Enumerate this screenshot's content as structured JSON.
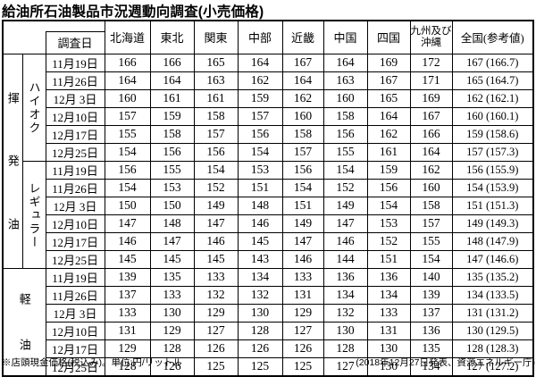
{
  "title": "給油所石油製品市況週動向調査(小売価格)",
  "table": {
    "corner_label": "調査日",
    "region_headers": [
      "北海道",
      "東北",
      "関東",
      "中部",
      "近畿",
      "中国",
      "四国",
      "九州及び沖縄",
      "全国(参考値)"
    ],
    "groups": [
      {
        "category": "揮発油",
        "fuel": "ハイオク",
        "rows": [
          {
            "date": "11月19日",
            "values": [
              "166",
              "166",
              "165",
              "164",
              "167",
              "164",
              "169",
              "172",
              "167 (166.7)"
            ]
          },
          {
            "date": "11月26日",
            "values": [
              "164",
              "164",
              "163",
              "162",
              "164",
              "163",
              "167",
              "171",
              "165 (164.7)"
            ]
          },
          {
            "date": "12月 3日",
            "values": [
              "160",
              "161",
              "161",
              "159",
              "162",
              "160",
              "165",
              "169",
              "162 (162.1)"
            ]
          },
          {
            "date": "12月10日",
            "values": [
              "157",
              "159",
              "158",
              "157",
              "160",
              "158",
              "164",
              "167",
              "160 (160.1)"
            ]
          },
          {
            "date": "12月17日",
            "values": [
              "155",
              "158",
              "157",
              "156",
              "158",
              "156",
              "162",
              "166",
              "159 (158.6)"
            ]
          },
          {
            "date": "12月25日",
            "values": [
              "154",
              "156",
              "156",
              "154",
              "157",
              "155",
              "161",
              "164",
              "157 (157.3)"
            ]
          }
        ]
      },
      {
        "fuel": "レギュラー",
        "rows": [
          {
            "date": "11月19日",
            "values": [
              "156",
              "155",
              "154",
              "153",
              "156",
              "154",
              "159",
              "162",
              "156 (155.9)"
            ]
          },
          {
            "date": "11月26日",
            "values": [
              "154",
              "153",
              "152",
              "151",
              "154",
              "152",
              "156",
              "160",
              "154 (153.9)"
            ]
          },
          {
            "date": "12月 3日",
            "values": [
              "150",
              "150",
              "149",
              "148",
              "151",
              "149",
              "154",
              "158",
              "151 (151.3)"
            ]
          },
          {
            "date": "12月10日",
            "values": [
              "147",
              "148",
              "147",
              "146",
              "149",
              "147",
              "153",
              "157",
              "149 (149.3)"
            ]
          },
          {
            "date": "12月17日",
            "values": [
              "146",
              "147",
              "146",
              "145",
              "147",
              "146",
              "152",
              "155",
              "148 (147.9)"
            ]
          },
          {
            "date": "12月25日",
            "values": [
              "145",
              "145",
              "145",
              "143",
              "146",
              "144",
              "151",
              "154",
              "147 (146.6)"
            ]
          }
        ]
      },
      {
        "category": "軽油",
        "rows": [
          {
            "date": "11月19日",
            "values": [
              "139",
              "135",
              "133",
              "134",
              "133",
              "136",
              "136",
              "140",
              "135 (135.2)"
            ]
          },
          {
            "date": "11月26日",
            "values": [
              "137",
              "133",
              "132",
              "132",
              "131",
              "134",
              "134",
              "139",
              "134 (133.5)"
            ]
          },
          {
            "date": "12月 3日",
            "values": [
              "133",
              "130",
              "129",
              "130",
              "129",
              "132",
              "133",
              "137",
              "131 (131.2)"
            ]
          },
          {
            "date": "12月10日",
            "values": [
              "131",
              "129",
              "127",
              "128",
              "127",
              "130",
              "131",
              "136",
              "130 (129.5)"
            ]
          },
          {
            "date": "12月17日",
            "values": [
              "129",
              "128",
              "126",
              "126",
              "126",
              "128",
              "130",
              "135",
              "128 (128.3)"
            ]
          },
          {
            "date": "12月25日",
            "values": [
              "128",
              "126",
              "125",
              "125",
              "125",
              "127",
              "130",
              "134",
              "127 (127.2)"
            ]
          }
        ]
      }
    ]
  },
  "footer": {
    "left": "※店頭現金価格(税込み)。単位:円/リットル",
    "right": "(2018年12月27日発表、資源エネルギー庁)"
  }
}
